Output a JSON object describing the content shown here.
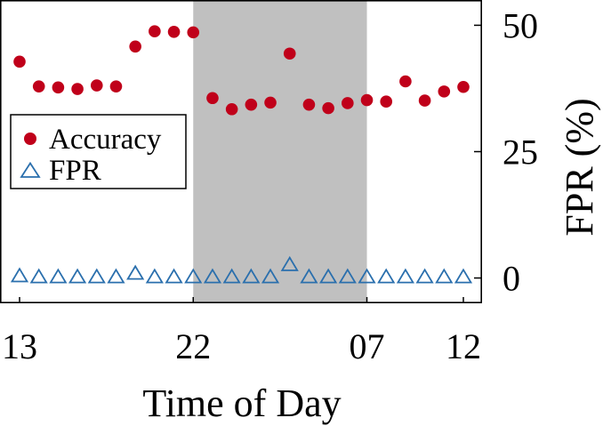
{
  "chart_data": {
    "type": "scatter",
    "xlabel": "Time of Day",
    "ylabel_right": "FPR (%)",
    "x_tick_labels": [
      "13",
      "22",
      "07",
      "12"
    ],
    "x_tick_index": [
      0,
      9,
      18,
      23
    ],
    "y_ticks": [
      "0",
      "25",
      "50"
    ],
    "ylim": [
      -5,
      55
    ],
    "shaded_region": {
      "from_index": 9,
      "to_index": 18,
      "color": "#c0c0c0"
    },
    "legend": {
      "position": "middle-left"
    },
    "series": [
      {
        "name": "Accuracy",
        "marker": "filled-circle",
        "color": "#c0001a",
        "values": [
          42.8,
          37.9,
          37.7,
          37.4,
          38.1,
          37.9,
          45.8,
          48.8,
          48.7,
          48.6,
          35.6,
          33.4,
          34.3,
          34.7,
          44.4,
          34.3,
          33.6,
          34.6,
          35.2,
          34.9,
          38.9,
          35.1,
          36.9,
          37.8
        ]
      },
      {
        "name": "FPR",
        "marker": "hollow-triangle",
        "color": "#2a6fad",
        "values": [
          0.3,
          0.1,
          0.1,
          0.1,
          0.1,
          0.1,
          0.8,
          0.1,
          0.1,
          0.1,
          0.1,
          0.1,
          0.1,
          0.1,
          2.5,
          0.1,
          0.1,
          0.1,
          0.1,
          0.1,
          0.1,
          0.1,
          0.1,
          0.1
        ]
      }
    ]
  }
}
